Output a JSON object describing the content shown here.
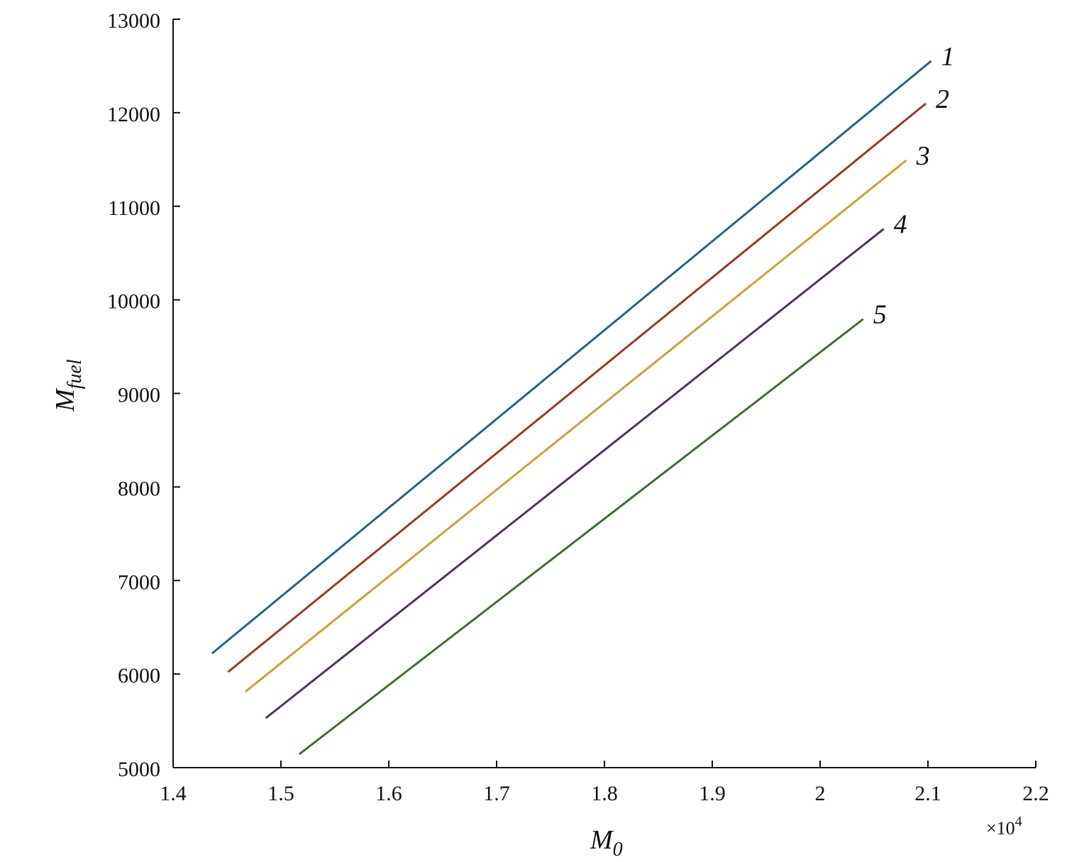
{
  "chart_data": {
    "type": "line",
    "title": "",
    "xlabel": "M",
    "xlabel_sub": "0",
    "ylabel": "M",
    "ylabel_sub": "fuel",
    "x_multiplier": "×10",
    "x_multiplier_exp": "4",
    "xlim": [
      1.4,
      2.2
    ],
    "ylim": [
      5000,
      13000
    ],
    "xticks": [
      "1.4",
      "1.5",
      "1.6",
      "1.7",
      "1.8",
      "1.9",
      "2",
      "2.1",
      "2.2"
    ],
    "xtick_values": [
      1.4,
      1.5,
      1.6,
      1.7,
      1.8,
      1.9,
      2.0,
      2.1,
      2.2
    ],
    "yticks": [
      "5000",
      "6000",
      "7000",
      "8000",
      "9000",
      "10000",
      "11000",
      "12000",
      "13000"
    ],
    "ytick_values": [
      5000,
      6000,
      7000,
      8000,
      9000,
      10000,
      11000,
      12000,
      13000
    ],
    "grid": false,
    "series": [
      {
        "name": "1",
        "color": "#2a6283",
        "x": [
          1.436,
          2.103
        ],
        "y": [
          6220,
          12553
        ]
      },
      {
        "name": "2",
        "color": "#9a3a22",
        "x": [
          1.451,
          2.098
        ],
        "y": [
          6023,
          12098
        ]
      },
      {
        "name": "3",
        "color": "#c9a238",
        "x": [
          1.467,
          2.08
        ],
        "y": [
          5811,
          11492
        ]
      },
      {
        "name": "4",
        "color": "#55305f",
        "x": [
          1.486,
          2.059
        ],
        "y": [
          5530,
          10758
        ]
      },
      {
        "name": "5",
        "color": "#3d7030",
        "x": [
          1.517,
          2.04
        ],
        "y": [
          5144,
          9795
        ]
      }
    ]
  }
}
